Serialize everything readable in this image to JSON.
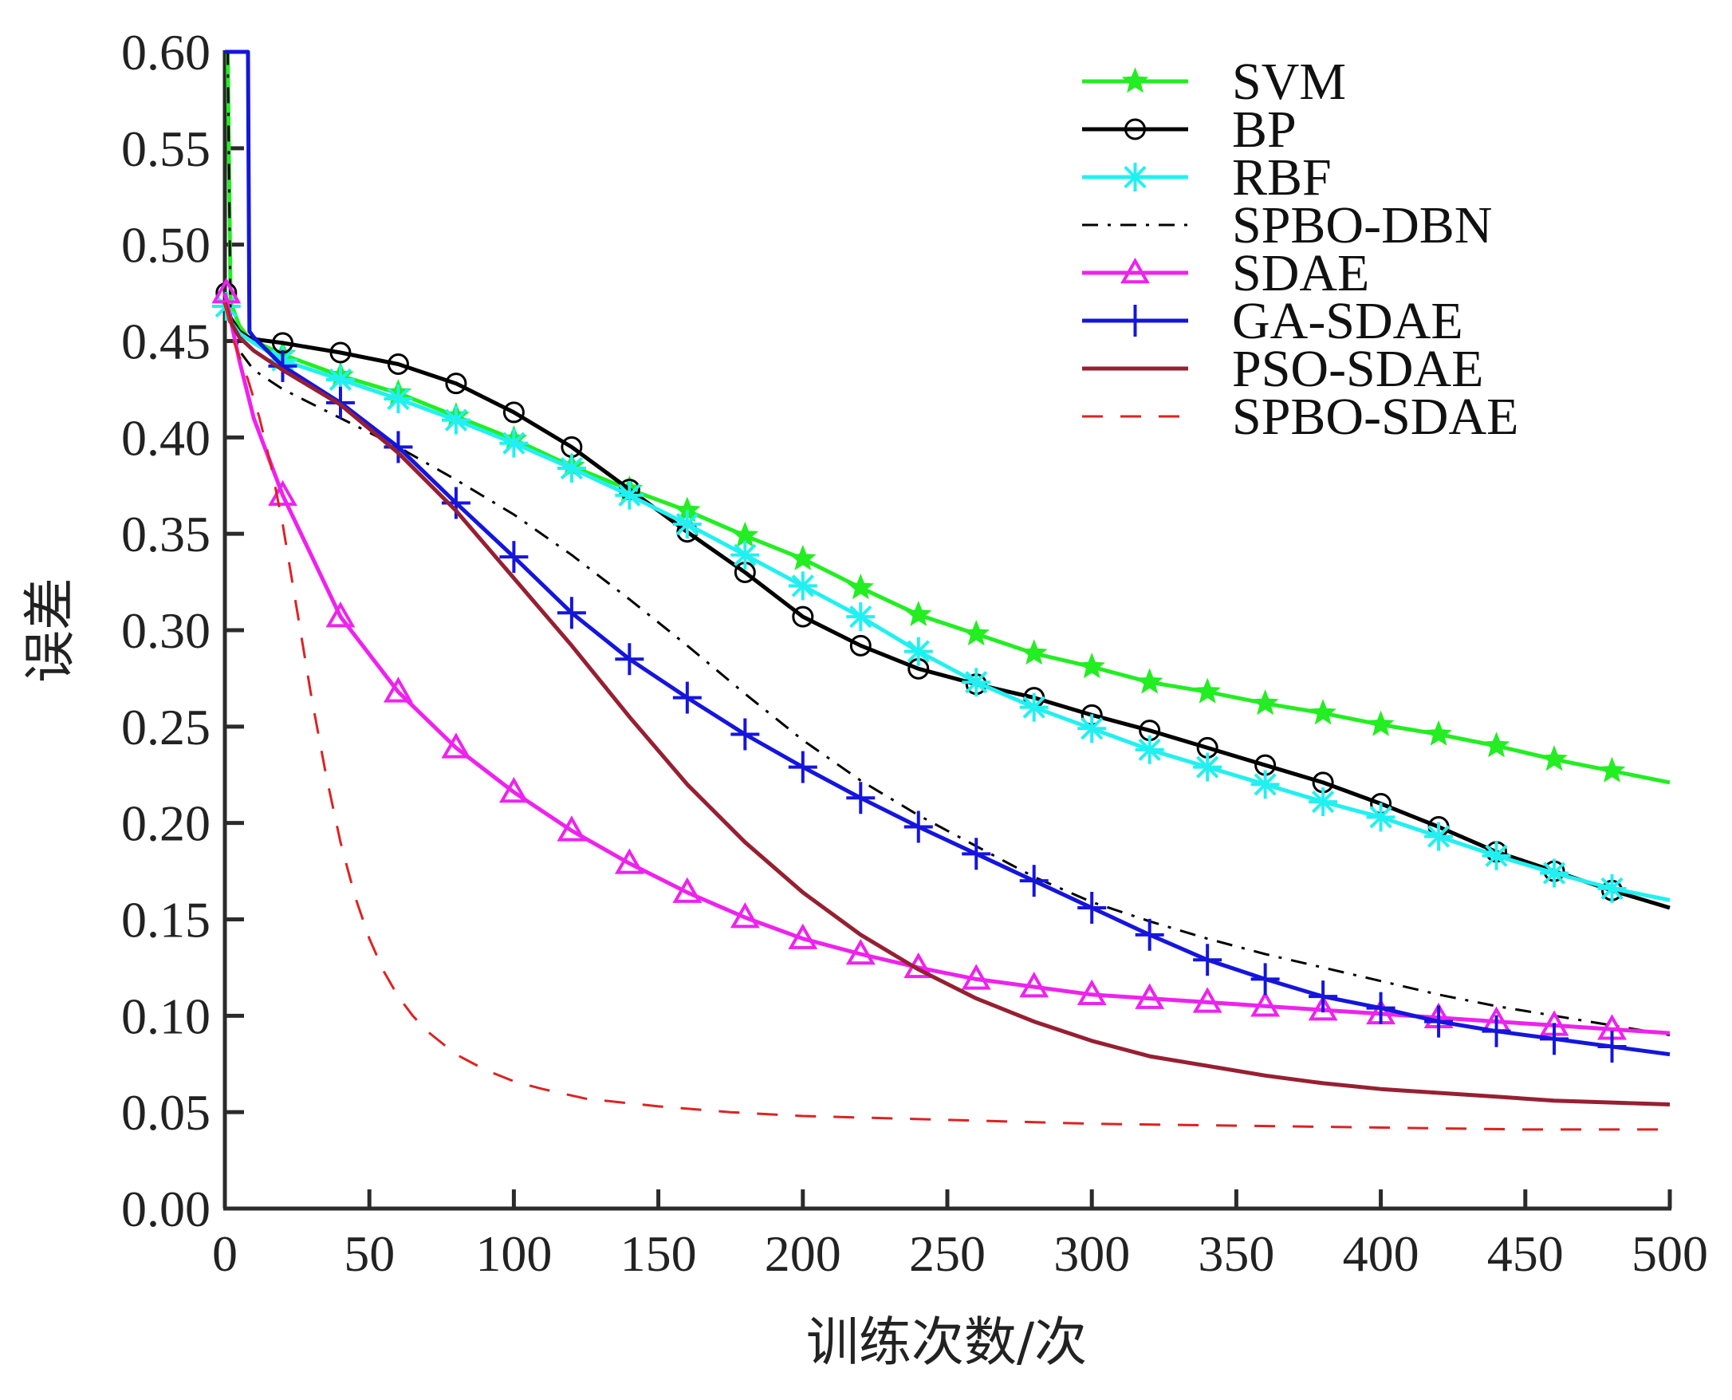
{
  "chart_data": {
    "type": "line",
    "title": "",
    "xlabel": "训练次数/次",
    "ylabel": "误差",
    "xlim": [
      0,
      500
    ],
    "ylim": [
      0,
      0.6
    ],
    "xticks": [
      0,
      50,
      100,
      150,
      200,
      250,
      300,
      350,
      400,
      450,
      500
    ],
    "xtick_labels": [
      "0",
      "50",
      "100",
      "150",
      "200",
      "250",
      "300",
      "350",
      "400",
      "450",
      "500"
    ],
    "yticks": [
      0,
      0.05,
      0.1,
      0.15,
      0.2,
      0.25,
      0.3,
      0.35,
      0.4,
      0.45,
      0.5,
      0.55,
      0.6
    ],
    "ytick_labels": [
      "0.00",
      "0.05",
      "0.10",
      "0.15",
      "0.20",
      "0.25",
      "0.30",
      "0.35",
      "0.40",
      "0.45",
      "0.50",
      "0.55",
      "0.60"
    ],
    "grid": false,
    "legend_position": "top-right",
    "series": [
      {
        "name": "SVM",
        "color": "#22ee22",
        "marker": "star",
        "dash": "solid",
        "marker_every": 20,
        "x": [
          0,
          1,
          2,
          5,
          8,
          10,
          20,
          40,
          60,
          80,
          100,
          120,
          140,
          160,
          180,
          200,
          220,
          240,
          260,
          280,
          300,
          320,
          340,
          360,
          380,
          400,
          420,
          440,
          460,
          480,
          500
        ],
        "y": [
          0.6,
          0.6,
          0.47,
          0.458,
          0.452,
          0.45,
          0.443,
          0.432,
          0.423,
          0.411,
          0.399,
          0.385,
          0.373,
          0.362,
          0.349,
          0.337,
          0.322,
          0.308,
          0.298,
          0.288,
          0.281,
          0.273,
          0.268,
          0.262,
          0.257,
          0.251,
          0.246,
          0.24,
          0.233,
          0.227,
          0.221
        ]
      },
      {
        "name": "BP",
        "color": "#000000",
        "marker": "circle",
        "dash": "solid",
        "marker_every": 20,
        "x": [
          0,
          2,
          5,
          8,
          10,
          20,
          40,
          60,
          80,
          100,
          120,
          140,
          160,
          180,
          200,
          220,
          240,
          260,
          280,
          300,
          320,
          340,
          360,
          380,
          400,
          420,
          440,
          460,
          480,
          500
        ],
        "y": [
          0.475,
          0.462,
          0.455,
          0.452,
          0.451,
          0.449,
          0.444,
          0.438,
          0.428,
          0.413,
          0.395,
          0.373,
          0.351,
          0.33,
          0.307,
          0.292,
          0.28,
          0.272,
          0.265,
          0.256,
          0.248,
          0.239,
          0.23,
          0.221,
          0.21,
          0.198,
          0.185,
          0.175,
          0.165,
          0.156
        ]
      },
      {
        "name": "RBF",
        "color": "#22f0f0",
        "marker": "asterisk",
        "dash": "solid",
        "marker_every": 20,
        "x": [
          0,
          2,
          5,
          8,
          10,
          20,
          40,
          60,
          80,
          100,
          120,
          140,
          160,
          180,
          200,
          220,
          240,
          260,
          280,
          300,
          320,
          340,
          360,
          380,
          400,
          420,
          440,
          460,
          480,
          500
        ],
        "y": [
          0.468,
          0.46,
          0.454,
          0.451,
          0.449,
          0.44,
          0.43,
          0.42,
          0.409,
          0.397,
          0.384,
          0.37,
          0.355,
          0.339,
          0.323,
          0.307,
          0.289,
          0.273,
          0.26,
          0.249,
          0.238,
          0.229,
          0.22,
          0.211,
          0.203,
          0.193,
          0.183,
          0.174,
          0.166,
          0.16
        ]
      },
      {
        "name": "SPBO-DBN",
        "color": "#000000",
        "marker": "none",
        "dash": "dashdot",
        "x": [
          0,
          1,
          2,
          5,
          10,
          20,
          40,
          60,
          80,
          100,
          120,
          140,
          160,
          180,
          200,
          220,
          240,
          260,
          280,
          300,
          320,
          340,
          360,
          380,
          400,
          420,
          440,
          460,
          480,
          500
        ],
        "y": [
          0.6,
          0.6,
          0.46,
          0.445,
          0.435,
          0.425,
          0.41,
          0.395,
          0.378,
          0.36,
          0.339,
          0.316,
          0.292,
          0.267,
          0.243,
          0.222,
          0.204,
          0.188,
          0.172,
          0.159,
          0.149,
          0.14,
          0.132,
          0.125,
          0.118,
          0.111,
          0.105,
          0.1,
          0.095,
          0.09
        ]
      },
      {
        "name": "SDAE",
        "color": "#ee22ee",
        "marker": "triangle",
        "dash": "solid",
        "marker_every": 20,
        "x": [
          0,
          5,
          10,
          20,
          40,
          60,
          80,
          100,
          120,
          140,
          160,
          180,
          200,
          220,
          240,
          260,
          280,
          300,
          320,
          340,
          360,
          380,
          400,
          420,
          440,
          460,
          480,
          500
        ],
        "y": [
          0.475,
          0.44,
          0.41,
          0.37,
          0.307,
          0.268,
          0.239,
          0.216,
          0.196,
          0.179,
          0.164,
          0.151,
          0.14,
          0.132,
          0.125,
          0.119,
          0.115,
          0.111,
          0.109,
          0.107,
          0.105,
          0.103,
          0.101,
          0.099,
          0.097,
          0.095,
          0.093,
          0.091
        ]
      },
      {
        "name": "GA-SDAE",
        "color": "#1515dd",
        "marker": "plus",
        "dash": "solid",
        "marker_every": 20,
        "x": [
          0,
          3,
          8,
          8.5,
          10,
          20,
          40,
          60,
          80,
          100,
          120,
          140,
          160,
          180,
          200,
          220,
          240,
          260,
          280,
          300,
          320,
          340,
          360,
          380,
          400,
          420,
          440,
          460,
          480,
          500
        ],
        "y": [
          0.6,
          0.6,
          0.6,
          0.455,
          0.452,
          0.437,
          0.418,
          0.395,
          0.366,
          0.338,
          0.309,
          0.285,
          0.265,
          0.246,
          0.229,
          0.213,
          0.198,
          0.184,
          0.17,
          0.156,
          0.142,
          0.129,
          0.119,
          0.11,
          0.104,
          0.097,
          0.092,
          0.088,
          0.084,
          0.08
        ]
      },
      {
        "name": "PSO-SDAE",
        "color": "#962032",
        "marker": "none",
        "dash": "solid",
        "x": [
          0,
          2,
          5,
          10,
          20,
          40,
          60,
          80,
          100,
          120,
          140,
          160,
          180,
          200,
          220,
          240,
          260,
          280,
          300,
          320,
          340,
          360,
          380,
          400,
          420,
          440,
          460,
          480,
          500
        ],
        "y": [
          0.47,
          0.46,
          0.452,
          0.445,
          0.435,
          0.417,
          0.392,
          0.362,
          0.327,
          0.292,
          0.255,
          0.22,
          0.19,
          0.164,
          0.142,
          0.124,
          0.109,
          0.097,
          0.087,
          0.079,
          0.074,
          0.069,
          0.065,
          0.062,
          0.06,
          0.058,
          0.056,
          0.055,
          0.054
        ]
      },
      {
        "name": "SPBO-SDAE",
        "color": "#dd2222",
        "marker": "none",
        "dash": "dashed",
        "x": [
          0,
          3,
          8,
          12,
          16,
          20,
          25,
          30,
          35,
          40,
          45,
          50,
          55,
          60,
          65,
          70,
          80,
          90,
          100,
          110,
          125,
          150,
          175,
          200,
          250,
          300,
          350,
          400,
          450,
          500
        ],
        "y": [
          0.47,
          0.45,
          0.43,
          0.41,
          0.385,
          0.355,
          0.31,
          0.265,
          0.225,
          0.19,
          0.162,
          0.14,
          0.123,
          0.11,
          0.1,
          0.092,
          0.08,
          0.072,
          0.066,
          0.062,
          0.057,
          0.053,
          0.05,
          0.048,
          0.046,
          0.044,
          0.043,
          0.042,
          0.041,
          0.041
        ]
      }
    ]
  }
}
